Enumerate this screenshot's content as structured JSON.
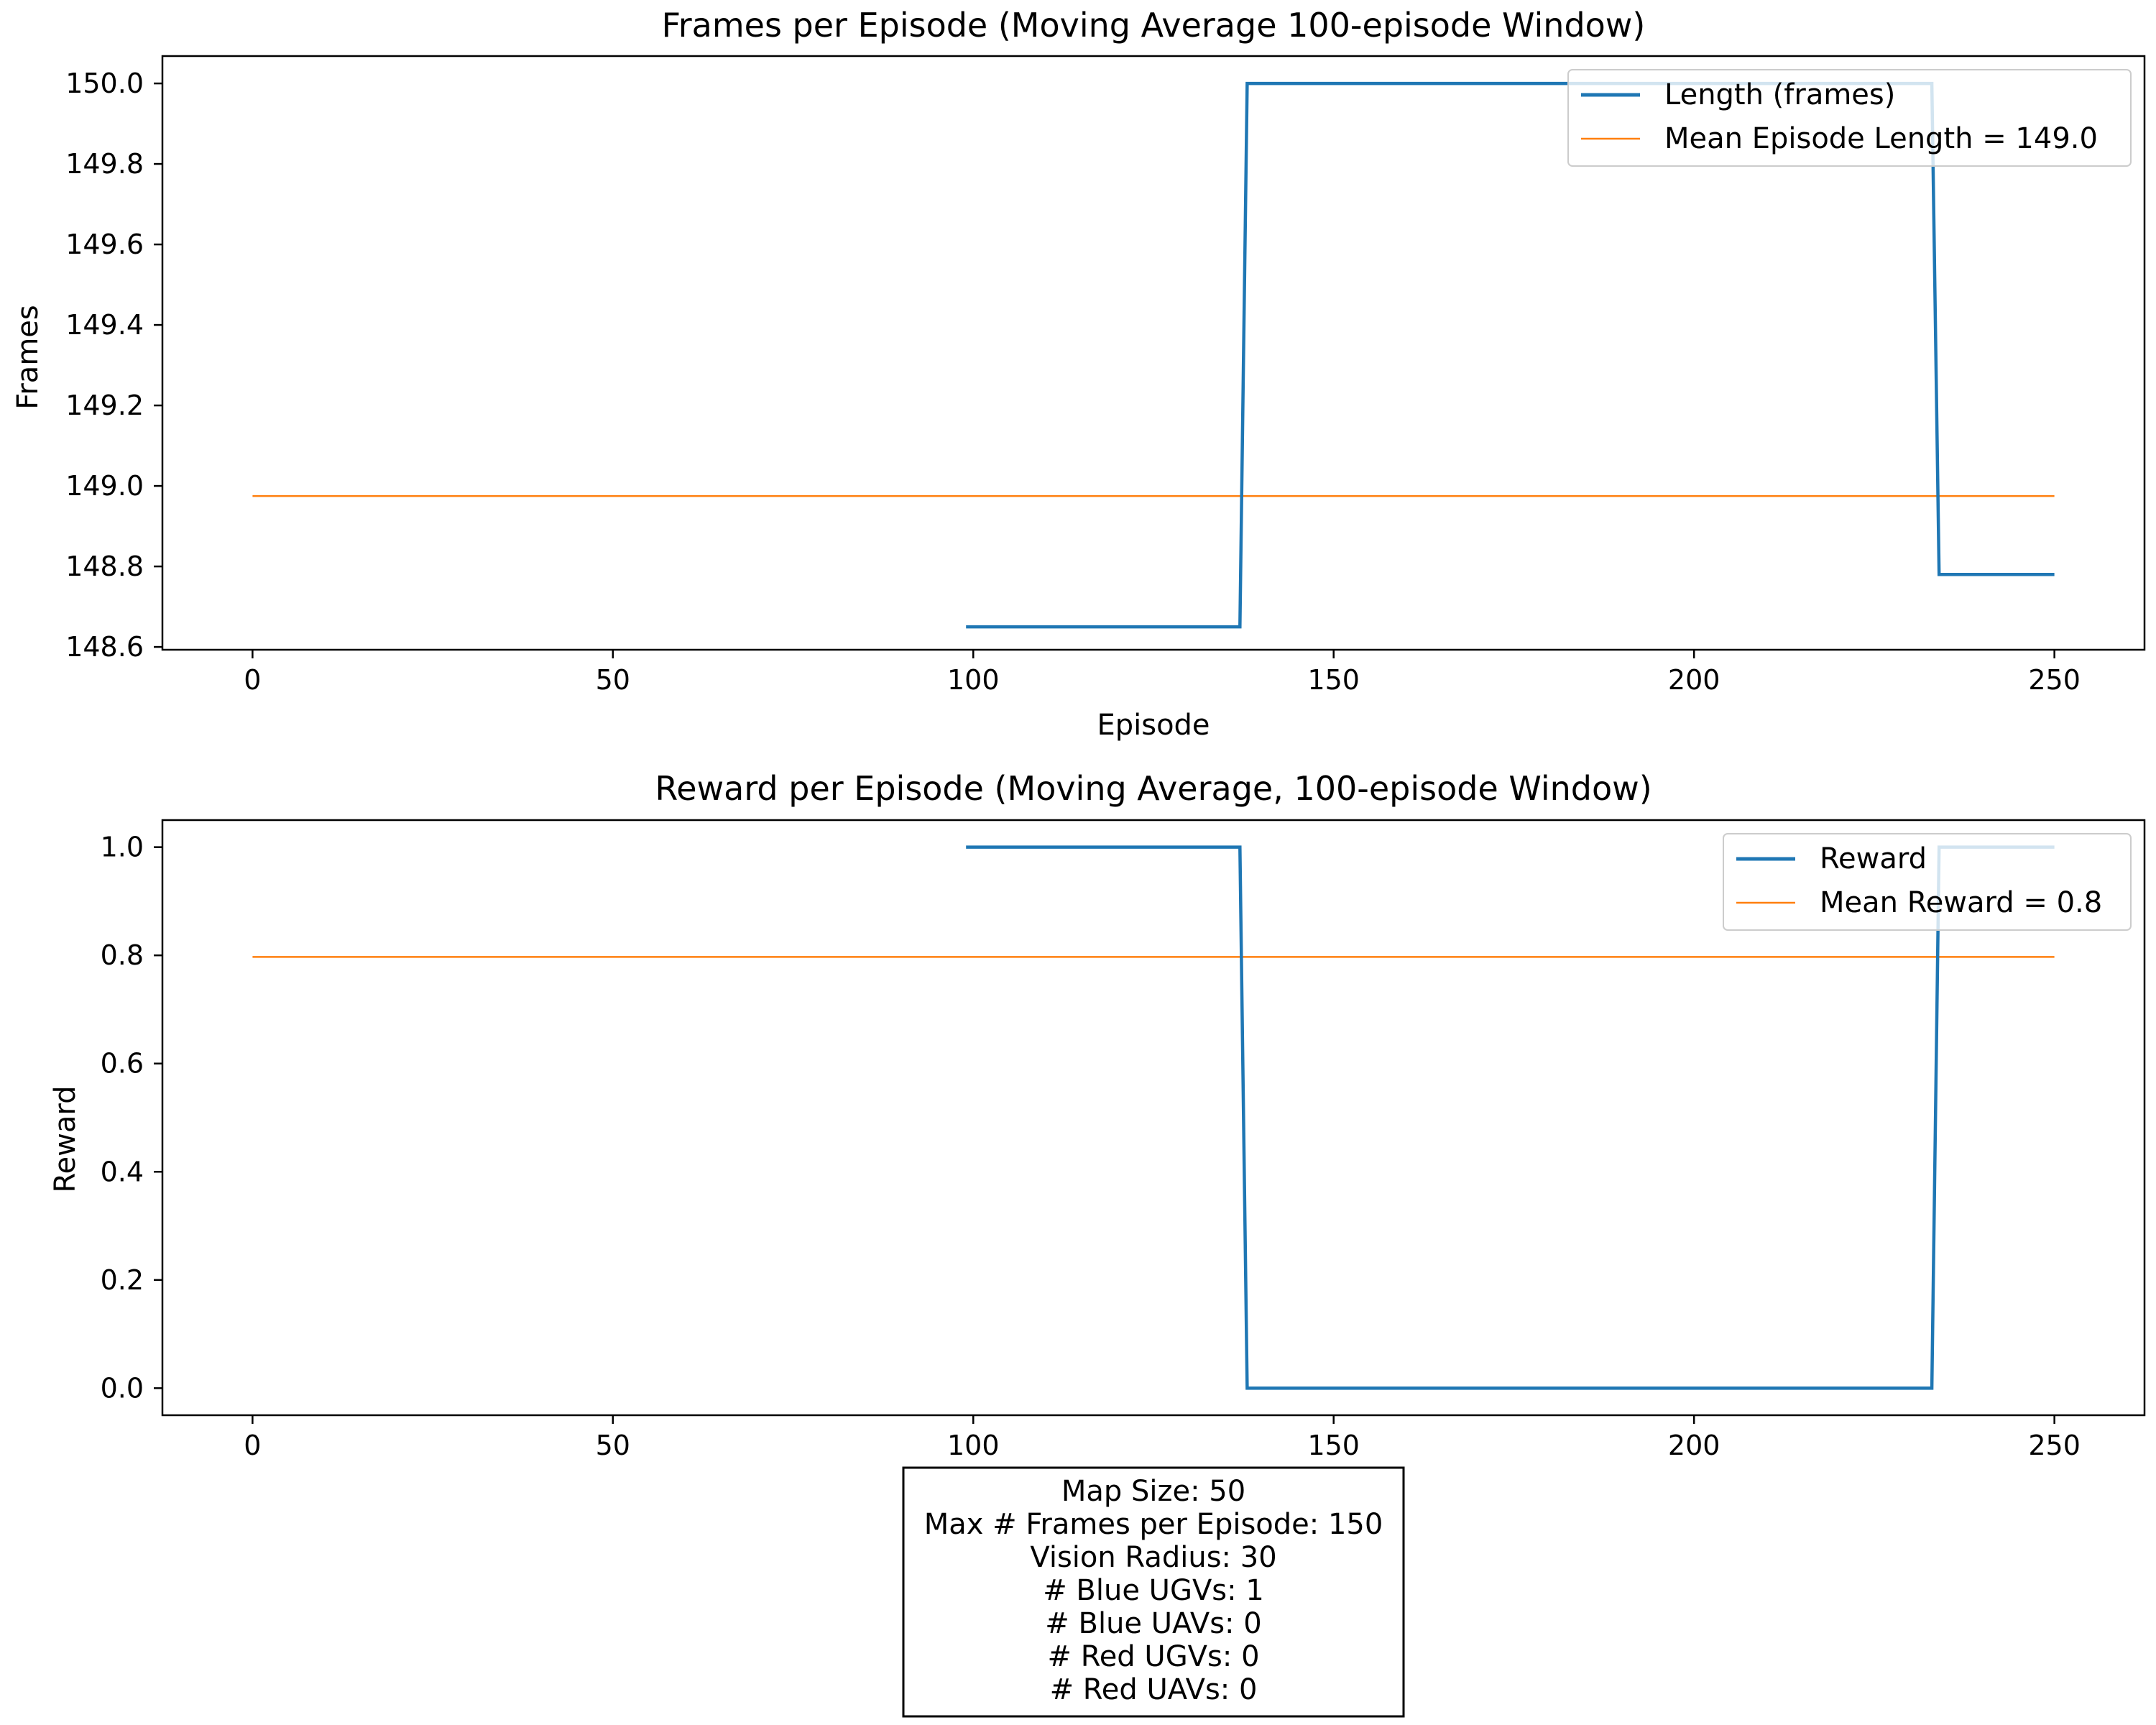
{
  "chart_data": [
    {
      "type": "line",
      "title": "Frames per Episode (Moving Average 100-episode Window)",
      "xlabel": "Episode",
      "ylabel": "Frames",
      "xlim": [
        -12.5,
        262.5
      ],
      "ylim": [
        148.593,
        150.068
      ],
      "x_ticks": [
        0,
        50,
        100,
        150,
        200,
        250
      ],
      "y_ticks": [
        148.6,
        148.8,
        149.0,
        149.2,
        149.4,
        149.6,
        149.8,
        150.0
      ],
      "y_tick_labels": [
        "148.6",
        "148.8",
        "149.0",
        "149.2",
        "149.4",
        "149.6",
        "149.8",
        "150.0"
      ],
      "legend_position": "top-right",
      "series": [
        {
          "name": "Length (frames)",
          "color": "#1f77b4",
          "points": [
            [
              99,
              148.65
            ],
            [
              137,
              148.65
            ],
            [
              138,
              150.0
            ],
            [
              233,
              150.0
            ],
            [
              234,
              148.78
            ],
            [
              250,
              148.78
            ]
          ]
        },
        {
          "name": "Mean Episode Length = 149.0",
          "color": "#ff7f0e",
          "points": [
            [
              0,
              148.975
            ],
            [
              250,
              148.975
            ]
          ]
        }
      ]
    },
    {
      "type": "line",
      "title": "Reward per Episode (Moving Average, 100-episode Window)",
      "xlabel": "",
      "ylabel": "Reward",
      "xlim": [
        -12.5,
        262.5
      ],
      "ylim": [
        -0.05,
        1.05
      ],
      "x_ticks": [
        0,
        50,
        100,
        150,
        200,
        250
      ],
      "y_ticks": [
        0.0,
        0.2,
        0.4,
        0.6,
        0.8,
        1.0
      ],
      "y_tick_labels": [
        "0.0",
        "0.2",
        "0.4",
        "0.6",
        "0.8",
        "1.0"
      ],
      "legend_position": "top-right",
      "series": [
        {
          "name": "Reward",
          "color": "#1f77b4",
          "points": [
            [
              99,
              1.0
            ],
            [
              137,
              1.0
            ],
            [
              138,
              0.0
            ],
            [
              233,
              0.0
            ],
            [
              234,
              1.0
            ],
            [
              250,
              1.0
            ]
          ]
        },
        {
          "name": "Mean Reward = 0.8",
          "color": "#ff7f0e",
          "points": [
            [
              0,
              0.797
            ],
            [
              250,
              0.797
            ]
          ]
        }
      ]
    }
  ],
  "info_box": {
    "lines": [
      "Map Size: 50",
      "Max # Frames per Episode: 150",
      "Vision Radius: 30",
      "# Blue UGVs: 1",
      "# Blue UAVs: 0",
      "# Red UGVs: 0",
      "# Red UAVs: 0"
    ]
  }
}
